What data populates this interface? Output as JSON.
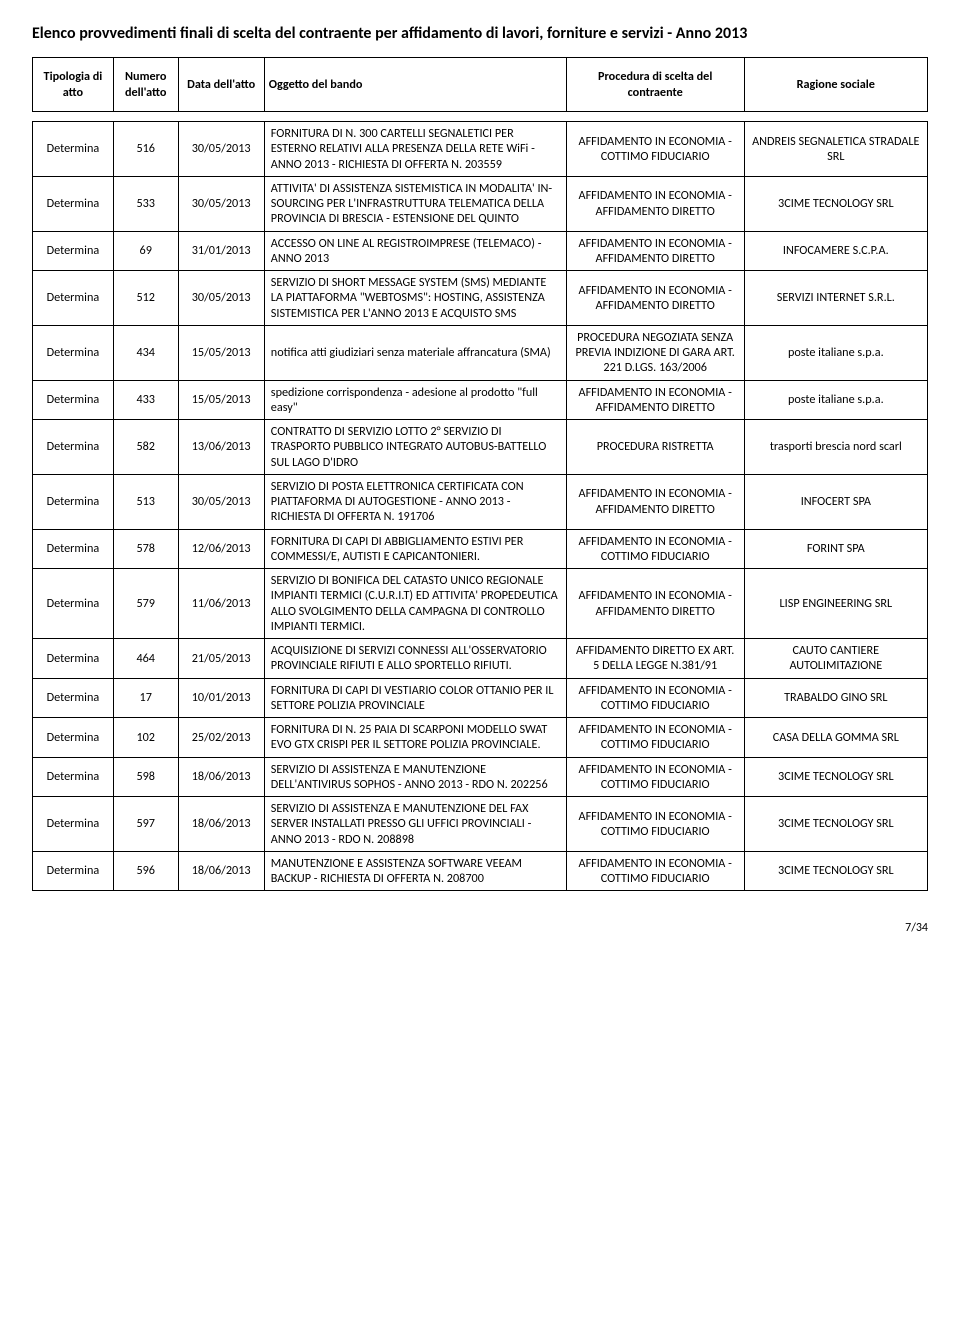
{
  "title": "Elenco provvedimenti finali di scelta del contraente per affidamento di lavori, forniture e servizi - Anno 2013",
  "pageNumber": "7/34",
  "columns": [
    "Tipologia di atto",
    "Numero dell'atto",
    "Data dell'atto",
    "Oggetto del bando",
    "Procedura di scelta del contraente",
    "Ragione sociale"
  ],
  "rows": [
    [
      "Determina",
      "516",
      "30/05/2013",
      "FORNITURA DI N. 300 CARTELLI SEGNALETICI PER ESTERNO RELATIVI ALLA PRESENZA DELLA RETE WiFi - ANNO 2013 - RICHIESTA DI OFFERTA N. 203559",
      "AFFIDAMENTO IN ECONOMIA - COTTIMO FIDUCIARIO",
      "ANDREIS SEGNALETICA STRADALE SRL"
    ],
    [
      "Determina",
      "533",
      "30/05/2013",
      "ATTIVITA' DI ASSISTENZA SISTEMISTICA IN MODALITA' IN-SOURCING PER L'INFRASTRUTTURA TELEMATICA DELLA PROVINCIA DI BRESCIA - ESTENSIONE DEL QUINTO",
      "AFFIDAMENTO IN ECONOMIA - AFFIDAMENTO DIRETTO",
      "3CIME TECNOLOGY SRL"
    ],
    [
      "Determina",
      "69",
      "31/01/2013",
      "ACCESSO ON LINE AL REGISTROIMPRESE (TELEMACO) - ANNO 2013",
      "AFFIDAMENTO IN ECONOMIA - AFFIDAMENTO DIRETTO",
      "INFOCAMERE S.C.P.A."
    ],
    [
      "Determina",
      "512",
      "30/05/2013",
      "SERVIZIO DI SHORT MESSAGE SYSTEM (SMS) MEDIANTE LA PIATTAFORMA \"WEBTOSMS\": HOSTING, ASSISTENZA SISTEMISTICA PER L'ANNO 2013 E ACQUISTO SMS",
      "AFFIDAMENTO IN ECONOMIA - AFFIDAMENTO DIRETTO",
      "SERVIZI INTERNET S.R.L."
    ],
    [
      "Determina",
      "434",
      "15/05/2013",
      "notifica atti giudiziari senza materiale affrancatura (SMA)",
      "PROCEDURA NEGOZIATA SENZA PREVIA INDIZIONE DI GARA ART. 221 D.LGS. 163/2006",
      "poste italiane s.p.a."
    ],
    [
      "Determina",
      "433",
      "15/05/2013",
      "spedizione corrispondenza - adesione al prodotto \"full easy\"",
      "AFFIDAMENTO IN ECONOMIA - AFFIDAMENTO DIRETTO",
      "poste italiane s.p.a."
    ],
    [
      "Determina",
      "582",
      "13/06/2013",
      "CONTRATTO DI SERVIZIO LOTTO 2° SERVIZIO DI TRASPORTO PUBBLICO INTEGRATO AUTOBUS-BATTELLO SUL LAGO D'IDRO",
      "PROCEDURA RISTRETTA",
      "trasporti brescia nord scarl"
    ],
    [
      "Determina",
      "513",
      "30/05/2013",
      "SERVIZIO DI POSTA ELETTRONICA CERTIFICATA CON PIATTAFORMA DI AUTOGESTIONE - ANNO 2013 - RICHIESTA DI OFFERTA N. 191706",
      "AFFIDAMENTO IN ECONOMIA - AFFIDAMENTO DIRETTO",
      "INFOCERT SPA"
    ],
    [
      "Determina",
      "578",
      "12/06/2013",
      "FORNITURA DI CAPI DI ABBIGLIAMENTO ESTIVI PER COMMESSI/E, AUTISTI E CAPICANTONIERI.",
      "AFFIDAMENTO IN ECONOMIA - COTTIMO FIDUCIARIO",
      "FORINT SPA"
    ],
    [
      "Determina",
      "579",
      "11/06/2013",
      "SERVIZIO DI BONIFICA DEL CATASTO UNICO REGIONALE IMPIANTI TERMICI (C.U.R.I.T) ED ATTIVITA' PROPEDEUTICA ALLO SVOLGIMENTO DELLA CAMPAGNA DI CONTROLLO IMPIANTI TERMICI.",
      "AFFIDAMENTO IN ECONOMIA - AFFIDAMENTO DIRETTO",
      "LISP ENGINEERING SRL"
    ],
    [
      "Determina",
      "464",
      "21/05/2013",
      "ACQUISIZIONE DI SERVIZI CONNESSI ALL'OSSERVATORIO PROVINCIALE RIFIUTI E ALLO SPORTELLO RIFIUTI.",
      "AFFIDAMENTO DIRETTO EX ART. 5 DELLA LEGGE N.381/91",
      "CAUTO CANTIERE AUTOLIMITAZIONE"
    ],
    [
      "Determina",
      "17",
      "10/01/2013",
      "FORNITURA DI CAPI DI VESTIARIO COLOR OTTANIO PER IL SETTORE POLIZIA PROVINCIALE",
      "AFFIDAMENTO IN ECONOMIA - COTTIMO FIDUCIARIO",
      "TRABALDO GINO SRL"
    ],
    [
      "Determina",
      "102",
      "25/02/2013",
      "FORNITURA DI N. 25 PAIA DI SCARPONI MODELLO SWAT EVO GTX CRISPI PER IL SETTORE POLIZIA PROVINCIALE.",
      "AFFIDAMENTO IN ECONOMIA - COTTIMO FIDUCIARIO",
      "CASA DELLA GOMMA SRL"
    ],
    [
      "Determina",
      "598",
      "18/06/2013",
      "SERVIZIO DI ASSISTENZA E MANUTENZIONE DELL'ANTIVIRUS SOPHOS - ANNO 2013 - RDO N. 202256",
      "AFFIDAMENTO IN ECONOMIA - COTTIMO FIDUCIARIO",
      "3CIME TECNOLOGY SRL"
    ],
    [
      "Determina",
      "597",
      "18/06/2013",
      "SERVIZIO DI ASSISTENZA E MANUTENZIONE DEL FAX SERVER INSTALLATI PRESSO GLI UFFICI PROVINCIALI - ANNO 2013 - RDO N. 208898",
      "AFFIDAMENTO IN ECONOMIA - COTTIMO FIDUCIARIO",
      "3CIME TECNOLOGY SRL"
    ],
    [
      "Determina",
      "596",
      "18/06/2013",
      "MANUTENZIONE E ASSISTENZA SOFTWARE VEEAM BACKUP - RICHIESTA DI OFFERTA N. 208700",
      "AFFIDAMENTO IN ECONOMIA - COTTIMO FIDUCIARIO",
      "3CIME TECNOLOGY SRL"
    ]
  ]
}
